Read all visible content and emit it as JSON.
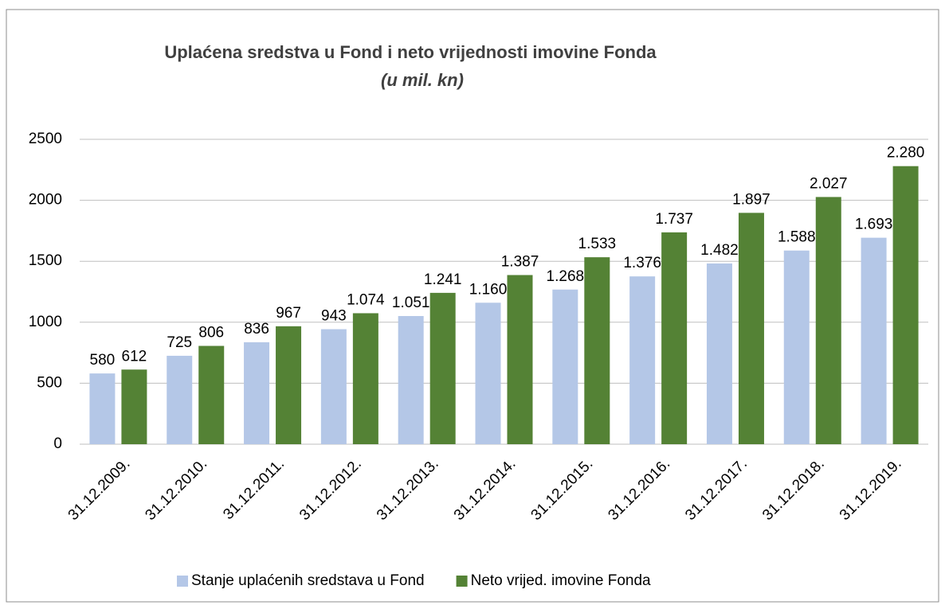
{
  "chart_data": {
    "type": "bar",
    "title": "Uplaćena sredstva u Fond i neto vrijednosti imovine Fonda",
    "subtitle": "(u mil. kn)",
    "categories": [
      "31.12.2009.",
      "31.12.2010.",
      "31.12.2011.",
      "31.12.2012.",
      "31.12.2013.",
      "31.12.2014.",
      "31.12.2015.",
      "31.12.2016.",
      "31.12.2017.",
      "31.12.2018.",
      "31.12.2019."
    ],
    "series": [
      {
        "name": "Stanje uplaćenih sredstava u Fond",
        "color": "#b4c7e7",
        "values": [
          580,
          725,
          836,
          943,
          1051,
          1160,
          1268,
          1376,
          1482,
          1588,
          1693
        ],
        "value_labels": [
          "580",
          "725",
          "836",
          "943",
          "1.051",
          "1.160",
          "1.268",
          "1.376",
          "1.482",
          "1.588",
          "1.693"
        ]
      },
      {
        "name": "Neto vrijed. imovine Fonda",
        "color": "#548235",
        "values": [
          612,
          806,
          967,
          1074,
          1241,
          1387,
          1533,
          1737,
          1897,
          2027,
          2280
        ],
        "value_labels": [
          "612",
          "806",
          "967",
          "1.074",
          "1.241",
          "1.387",
          "1.533",
          "1.737",
          "1.897",
          "2.027",
          "2.280"
        ]
      }
    ],
    "ylim": [
      0,
      2500
    ],
    "yticks": [
      0,
      500,
      1000,
      1500,
      2000,
      2500
    ],
    "grid": true,
    "legend": "bottom"
  }
}
